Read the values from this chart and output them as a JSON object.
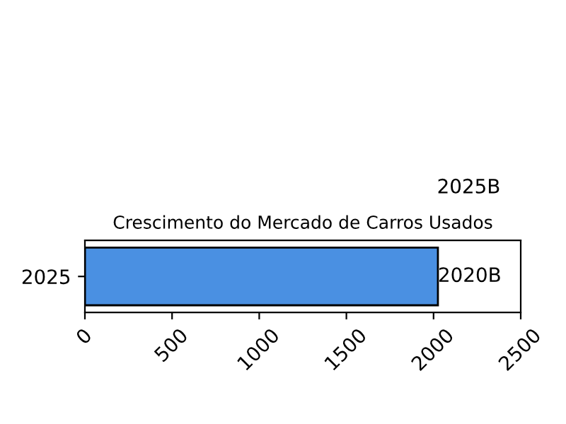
{
  "chart_data": {
    "type": "bar",
    "orientation": "horizontal",
    "title": "Crescimento do Mercado de Carros Usados",
    "categories": [
      "2025"
    ],
    "values": [
      2025
    ],
    "color": "#4a90e2",
    "xlim": [
      0,
      2500
    ],
    "xticks": [
      0,
      500,
      1000,
      1500,
      2000,
      2500
    ],
    "grid": false,
    "legend": false,
    "annotations": [
      "2025B",
      "2020B"
    ]
  }
}
